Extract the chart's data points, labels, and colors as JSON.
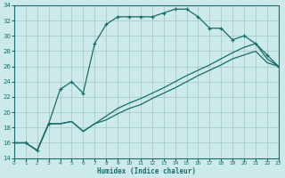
{
  "xlabel": "Humidex (Indice chaleur)",
  "bg_color": "#cceaea",
  "grid_color": "#aacccc",
  "line_color": "#1a6b6b",
  "xlim": [
    0,
    23
  ],
  "ylim": [
    14,
    34
  ],
  "xticks": [
    0,
    1,
    2,
    3,
    4,
    5,
    6,
    7,
    8,
    9,
    10,
    11,
    12,
    13,
    14,
    15,
    16,
    17,
    18,
    19,
    20,
    21,
    22,
    23
  ],
  "yticks": [
    14,
    16,
    18,
    20,
    22,
    24,
    26,
    28,
    30,
    32,
    34
  ],
  "curve1_x": [
    0,
    1,
    2,
    3,
    4,
    5,
    6,
    7,
    8,
    9,
    10,
    11,
    12,
    13,
    14,
    15,
    16,
    17,
    18,
    19,
    20,
    21,
    22,
    23
  ],
  "curve1_y": [
    16.0,
    16.0,
    15.0,
    18.5,
    23.0,
    24.0,
    22.5,
    29.0,
    31.5,
    32.5,
    32.5,
    32.5,
    32.5,
    33.0,
    33.5,
    33.5,
    32.5,
    31.0,
    31.0,
    29.5,
    30.0,
    29.0,
    27.5,
    26.0
  ],
  "curve2_x": [
    0,
    1,
    2,
    3,
    4,
    5,
    6,
    7,
    8,
    9,
    10,
    11,
    12,
    13,
    14,
    15,
    16,
    17,
    18,
    19,
    20,
    21,
    22,
    23
  ],
  "curve2_y": [
    16.0,
    16.0,
    15.0,
    18.5,
    18.5,
    18.8,
    17.5,
    18.5,
    19.5,
    20.5,
    21.2,
    21.8,
    22.5,
    23.2,
    24.0,
    24.8,
    25.5,
    26.2,
    27.0,
    27.8,
    28.5,
    29.0,
    27.0,
    26.0
  ],
  "curve3_x": [
    0,
    1,
    2,
    3,
    4,
    5,
    6,
    7,
    8,
    9,
    10,
    11,
    12,
    13,
    14,
    15,
    16,
    17,
    18,
    19,
    20,
    21,
    22,
    23
  ],
  "curve3_y": [
    16.0,
    16.0,
    15.0,
    18.5,
    18.5,
    18.8,
    17.5,
    18.5,
    19.0,
    19.8,
    20.5,
    21.0,
    21.8,
    22.5,
    23.2,
    24.0,
    24.8,
    25.5,
    26.2,
    27.0,
    27.5,
    28.0,
    26.5,
    26.0
  ]
}
